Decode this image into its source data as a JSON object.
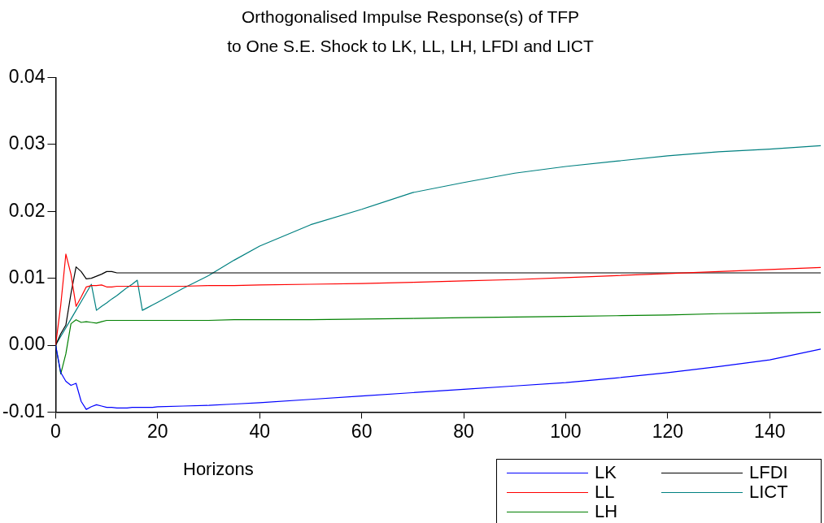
{
  "chart_data": {
    "type": "line",
    "title": "Orthogonalised Impulse Response(s) of TFP",
    "subtitle": "to One S.E. Shock to LK, LL, LH, LFDI and LICT",
    "xlabel": "Horizons",
    "x": [
      0,
      1,
      2,
      3,
      4,
      5,
      6,
      7,
      8,
      9,
      10,
      11,
      12,
      13,
      14,
      15,
      16,
      17,
      18,
      19,
      20,
      25,
      30,
      35,
      40,
      50,
      60,
      70,
      80,
      90,
      100,
      110,
      120,
      130,
      140,
      150
    ],
    "xlim": [
      0,
      150
    ],
    "xticks": [
      0,
      20,
      40,
      60,
      80,
      100,
      120,
      140
    ],
    "ylim": [
      -0.01,
      0.04
    ],
    "yticks": [
      {
        "value": -0.01,
        "label": "-0.01"
      },
      {
        "value": 0,
        "label": "0.00"
      },
      {
        "value": 0.01,
        "label": "0.01"
      },
      {
        "value": 0.02,
        "label": "0.02"
      },
      {
        "value": 0.03,
        "label": "0.03"
      },
      {
        "value": 0.04,
        "label": "0.04"
      }
    ],
    "legend": "bottom right",
    "series": [
      {
        "name": "LK",
        "color": "#0000ff",
        "values": [
          0,
          -0.0041,
          -0.0054,
          -0.006,
          -0.0057,
          -0.0084,
          -0.0096,
          -0.0092,
          -0.0089,
          -0.0091,
          -0.0093,
          -0.0093,
          -0.0094,
          -0.0094,
          -0.0094,
          -0.0093,
          -0.0093,
          -0.0093,
          -0.0093,
          -0.0093,
          -0.0092,
          -0.0091,
          -0.009,
          -0.0088,
          -0.0086,
          -0.0081,
          -0.0076,
          -0.0071,
          -0.0066,
          -0.0061,
          -0.0056,
          -0.0049,
          -0.0041,
          -0.0032,
          -0.0022,
          -0.0006
        ]
      },
      {
        "name": "LL",
        "color": "#ff0000",
        "values": [
          0,
          0.006,
          0.0136,
          0.0106,
          0.0058,
          0.0072,
          0.0087,
          0.0089,
          0.0089,
          0.009,
          0.0087,
          0.0087,
          0.0088,
          0.0088,
          0.0088,
          0.0088,
          0.0088,
          0.0088,
          0.0088,
          0.0088,
          0.0088,
          0.0088,
          0.0089,
          0.0089,
          0.009,
          0.0091,
          0.0092,
          0.0094,
          0.0096,
          0.0098,
          0.0101,
          0.0104,
          0.0107,
          0.011,
          0.0113,
          0.0116
        ]
      },
      {
        "name": "LH",
        "color": "#008000",
        "values": [
          0,
          -0.0043,
          -0.0013,
          0.0032,
          0.0038,
          0.0034,
          0.0035,
          0.0034,
          0.0033,
          0.0035,
          0.0037,
          0.0037,
          0.0037,
          0.0037,
          0.0037,
          0.0037,
          0.0037,
          0.0037,
          0.0037,
          0.0037,
          0.0037,
          0.0037,
          0.0037,
          0.0038,
          0.0038,
          0.0038,
          0.0039,
          0.004,
          0.0041,
          0.0042,
          0.0043,
          0.0044,
          0.0045,
          0.0047,
          0.0048,
          0.0049
        ]
      },
      {
        "name": "LFDI",
        "color": "#000000",
        "values": [
          0,
          0.0017,
          0.003,
          0.0077,
          0.0117,
          0.011,
          0.0099,
          0.01,
          0.0103,
          0.0106,
          0.011,
          0.011,
          0.0108,
          0.0108,
          0.0108,
          0.0108,
          0.0108,
          0.0108,
          0.0108,
          0.0108,
          0.0108,
          0.0108,
          0.0108,
          0.0108,
          0.0108,
          0.0108,
          0.0108,
          0.0108,
          0.0108,
          0.0108,
          0.0108,
          0.0108,
          0.0108,
          0.0108,
          0.0108,
          0.0108
        ]
      },
      {
        "name": "LICT",
        "color": "#008080",
        "values": [
          0,
          0.0013,
          0.0026,
          0.0039,
          0.0052,
          0.0065,
          0.0078,
          0.0091,
          0.0052,
          0.0058,
          0.0063,
          0.0069,
          0.0074,
          0.008,
          0.0086,
          0.0091,
          0.0097,
          0.0052,
          0.0056,
          0.006,
          0.0064,
          0.0085,
          0.0104,
          0.0127,
          0.0148,
          0.018,
          0.0203,
          0.0228,
          0.0243,
          0.0257,
          0.0267,
          0.0275,
          0.0283,
          0.0289,
          0.0293,
          0.0298
        ]
      }
    ]
  }
}
